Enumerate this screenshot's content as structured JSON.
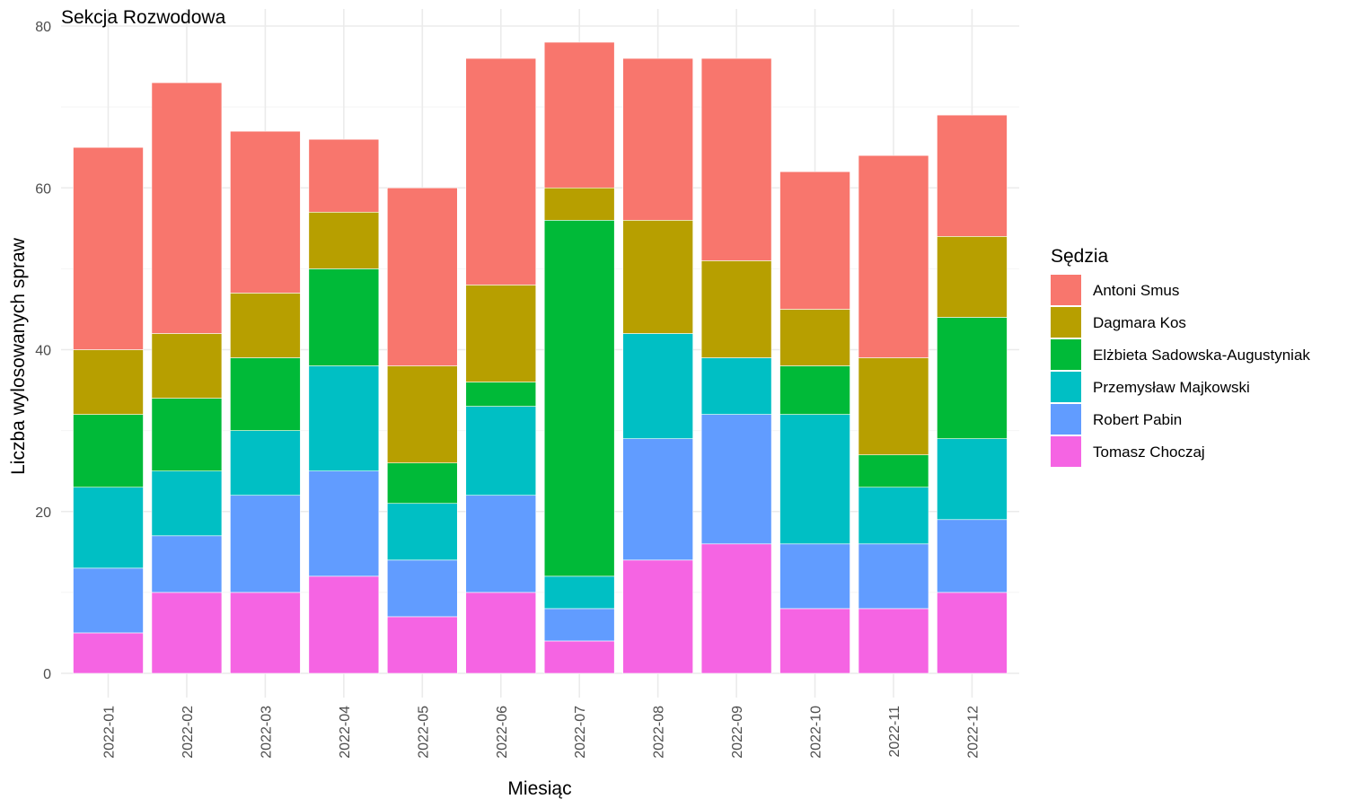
{
  "chart_data": {
    "type": "bar",
    "stacked": true,
    "title": "Sekcja Rozwodowa",
    "xlabel": "Miesiąc",
    "ylabel": "Liczba wylosowanych spraw",
    "ylim": [
      0,
      80
    ],
    "yticks": [
      0,
      20,
      40,
      60,
      80
    ],
    "grid": true,
    "legend_title": "Sędzia",
    "legend_position": "right",
    "categories": [
      "2022-01",
      "2022-02",
      "2022-03",
      "2022-04",
      "2022-05",
      "2022-06",
      "2022-07",
      "2022-08",
      "2022-09",
      "2022-10",
      "2022-11",
      "2022-12"
    ],
    "series": [
      {
        "name": "Antoni Smus",
        "color": "#F8766D",
        "values": [
          25,
          31,
          20,
          9,
          22,
          28,
          18,
          20,
          25,
          17,
          25,
          15
        ]
      },
      {
        "name": "Dagmara Kos",
        "color": "#B79F00",
        "values": [
          8,
          8,
          8,
          7,
          12,
          12,
          4,
          14,
          12,
          7,
          12,
          10
        ]
      },
      {
        "name": "Elżbieta Sadowska-Augustyniak",
        "color": "#00BA38",
        "values": [
          9,
          9,
          9,
          12,
          5,
          3,
          44,
          0,
          0,
          6,
          4,
          15
        ]
      },
      {
        "name": "Przemysław Majkowski",
        "color": "#00BFC4",
        "values": [
          10,
          8,
          8,
          13,
          7,
          11,
          4,
          13,
          7,
          16,
          7,
          10
        ]
      },
      {
        "name": "Robert Pabin",
        "color": "#619CFF",
        "values": [
          8,
          7,
          12,
          13,
          7,
          12,
          4,
          15,
          16,
          8,
          8,
          9
        ]
      },
      {
        "name": "Tomasz Choczaj",
        "color": "#F564E3",
        "values": [
          5,
          10,
          10,
          12,
          7,
          10,
          4,
          14,
          16,
          8,
          8,
          10
        ]
      }
    ]
  }
}
